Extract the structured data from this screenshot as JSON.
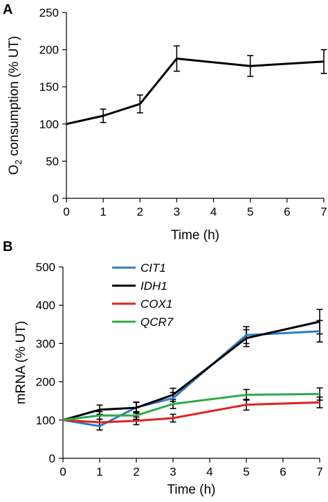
{
  "chart_data": [
    {
      "panel": "A",
      "type": "line",
      "xlabel": "Time (h)",
      "ylabel": {
        "prefix": "O",
        "subscript": "2",
        "suffix": " consumption (% UT)"
      },
      "xlim": [
        0,
        7
      ],
      "ylim": [
        0,
        250
      ],
      "xticks": [
        0,
        1,
        2,
        3,
        4,
        5,
        6,
        7
      ],
      "yticks": [
        0,
        50,
        100,
        150,
        200,
        250
      ],
      "grid": false,
      "series": [
        {
          "color": "#000000",
          "x": [
            0,
            1,
            2,
            3,
            5,
            7
          ],
          "y": [
            100,
            111,
            127,
            188,
            178,
            184
          ],
          "err": [
            0,
            9,
            12,
            17,
            14,
            16
          ]
        }
      ]
    },
    {
      "panel": "B",
      "type": "line",
      "xlabel": "Time (h)",
      "ylabel": "mRNA (% UT)",
      "xlim": [
        0,
        7
      ],
      "ylim": [
        0,
        500
      ],
      "xticks": [
        0,
        1,
        2,
        3,
        4,
        5,
        6,
        7
      ],
      "yticks": [
        0,
        100,
        200,
        300,
        400,
        500
      ],
      "grid": false,
      "legend_position": "top-left",
      "series": [
        {
          "name": "CIT1",
          "color": "#2f7bbd",
          "x": [
            0,
            1,
            2,
            3,
            5,
            7
          ],
          "y": [
            100,
            84,
            133,
            157,
            322,
            332
          ],
          "err": [
            0,
            10,
            14,
            15,
            22,
            28
          ]
        },
        {
          "name": "IDH1",
          "color": "#000000",
          "x": [
            0,
            1,
            2,
            3,
            5,
            7
          ],
          "y": [
            100,
            127,
            132,
            166,
            314,
            357
          ],
          "err": [
            0,
            12,
            14,
            17,
            22,
            32
          ]
        },
        {
          "name": "COX1",
          "color": "#e0201a",
          "x": [
            0,
            1,
            2,
            3,
            5,
            7
          ],
          "y": [
            100,
            94,
            98,
            105,
            140,
            146
          ],
          "err": [
            0,
            8,
            10,
            10,
            14,
            14
          ]
        },
        {
          "name": "QCR7",
          "color": "#2eaa4a",
          "x": [
            0,
            1,
            2,
            3,
            5,
            7
          ],
          "y": [
            100,
            112,
            112,
            142,
            166,
            168
          ],
          "err": [
            0,
            10,
            10,
            12,
            14,
            16
          ]
        }
      ]
    }
  ]
}
